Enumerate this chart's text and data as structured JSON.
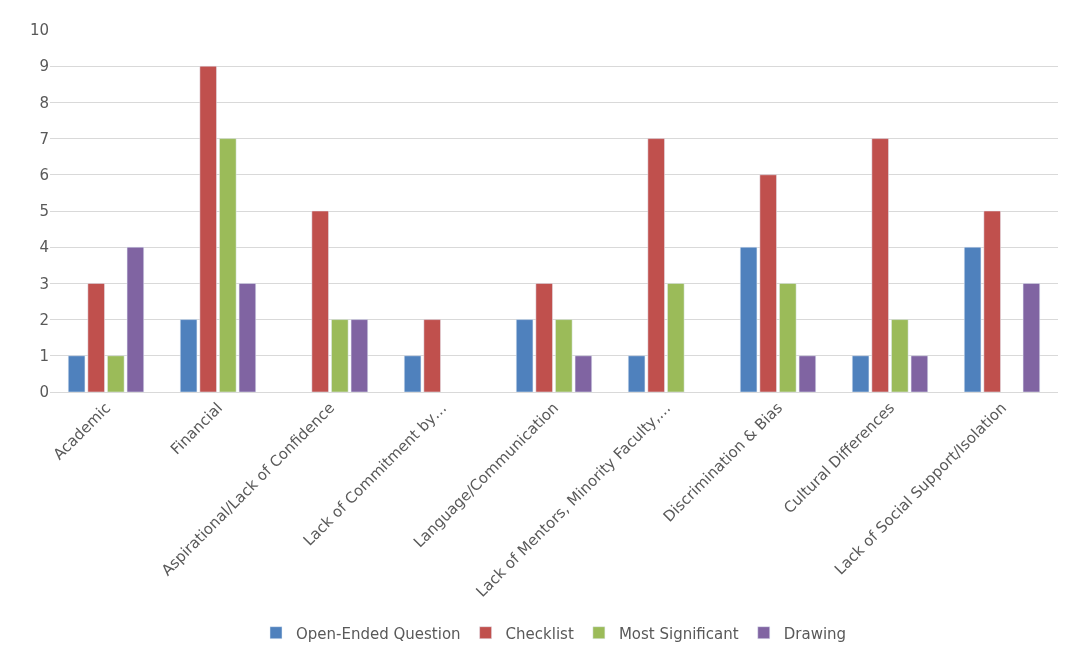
{
  "chart_data": {
    "type": "bar",
    "categories": [
      "Academic",
      "Financial",
      "Aspirational/Lack of Confidence",
      "Lack of Commitment by…",
      "Language/Communication",
      "Lack of Mentors, Minority Faculty,…",
      "Discrimination & Bias",
      "Cultural Differences",
      "Lack of Social Support/Isolation"
    ],
    "series": [
      {
        "name": "Open-Ended Question",
        "color": "#4f81bd",
        "values": [
          1,
          2,
          null,
          1,
          2,
          1,
          4,
          1,
          4
        ]
      },
      {
        "name": "Checklist",
        "color": "#c0504d",
        "values": [
          3,
          9,
          5,
          2,
          3,
          7,
          6,
          7,
          5
        ]
      },
      {
        "name": "Most Significant",
        "color": "#9bbb59",
        "values": [
          1,
          7,
          2,
          null,
          2,
          3,
          3,
          2,
          null
        ]
      },
      {
        "name": "Drawing",
        "color": "#8064a2",
        "values": [
          4,
          3,
          2,
          null,
          1,
          null,
          1,
          1,
          3
        ]
      }
    ],
    "ylim": [
      0,
      10
    ],
    "yticks": [
      0,
      1,
      2,
      3,
      4,
      5,
      6,
      7,
      8,
      9,
      10
    ],
    "grid": "y",
    "legend": "bottom"
  }
}
